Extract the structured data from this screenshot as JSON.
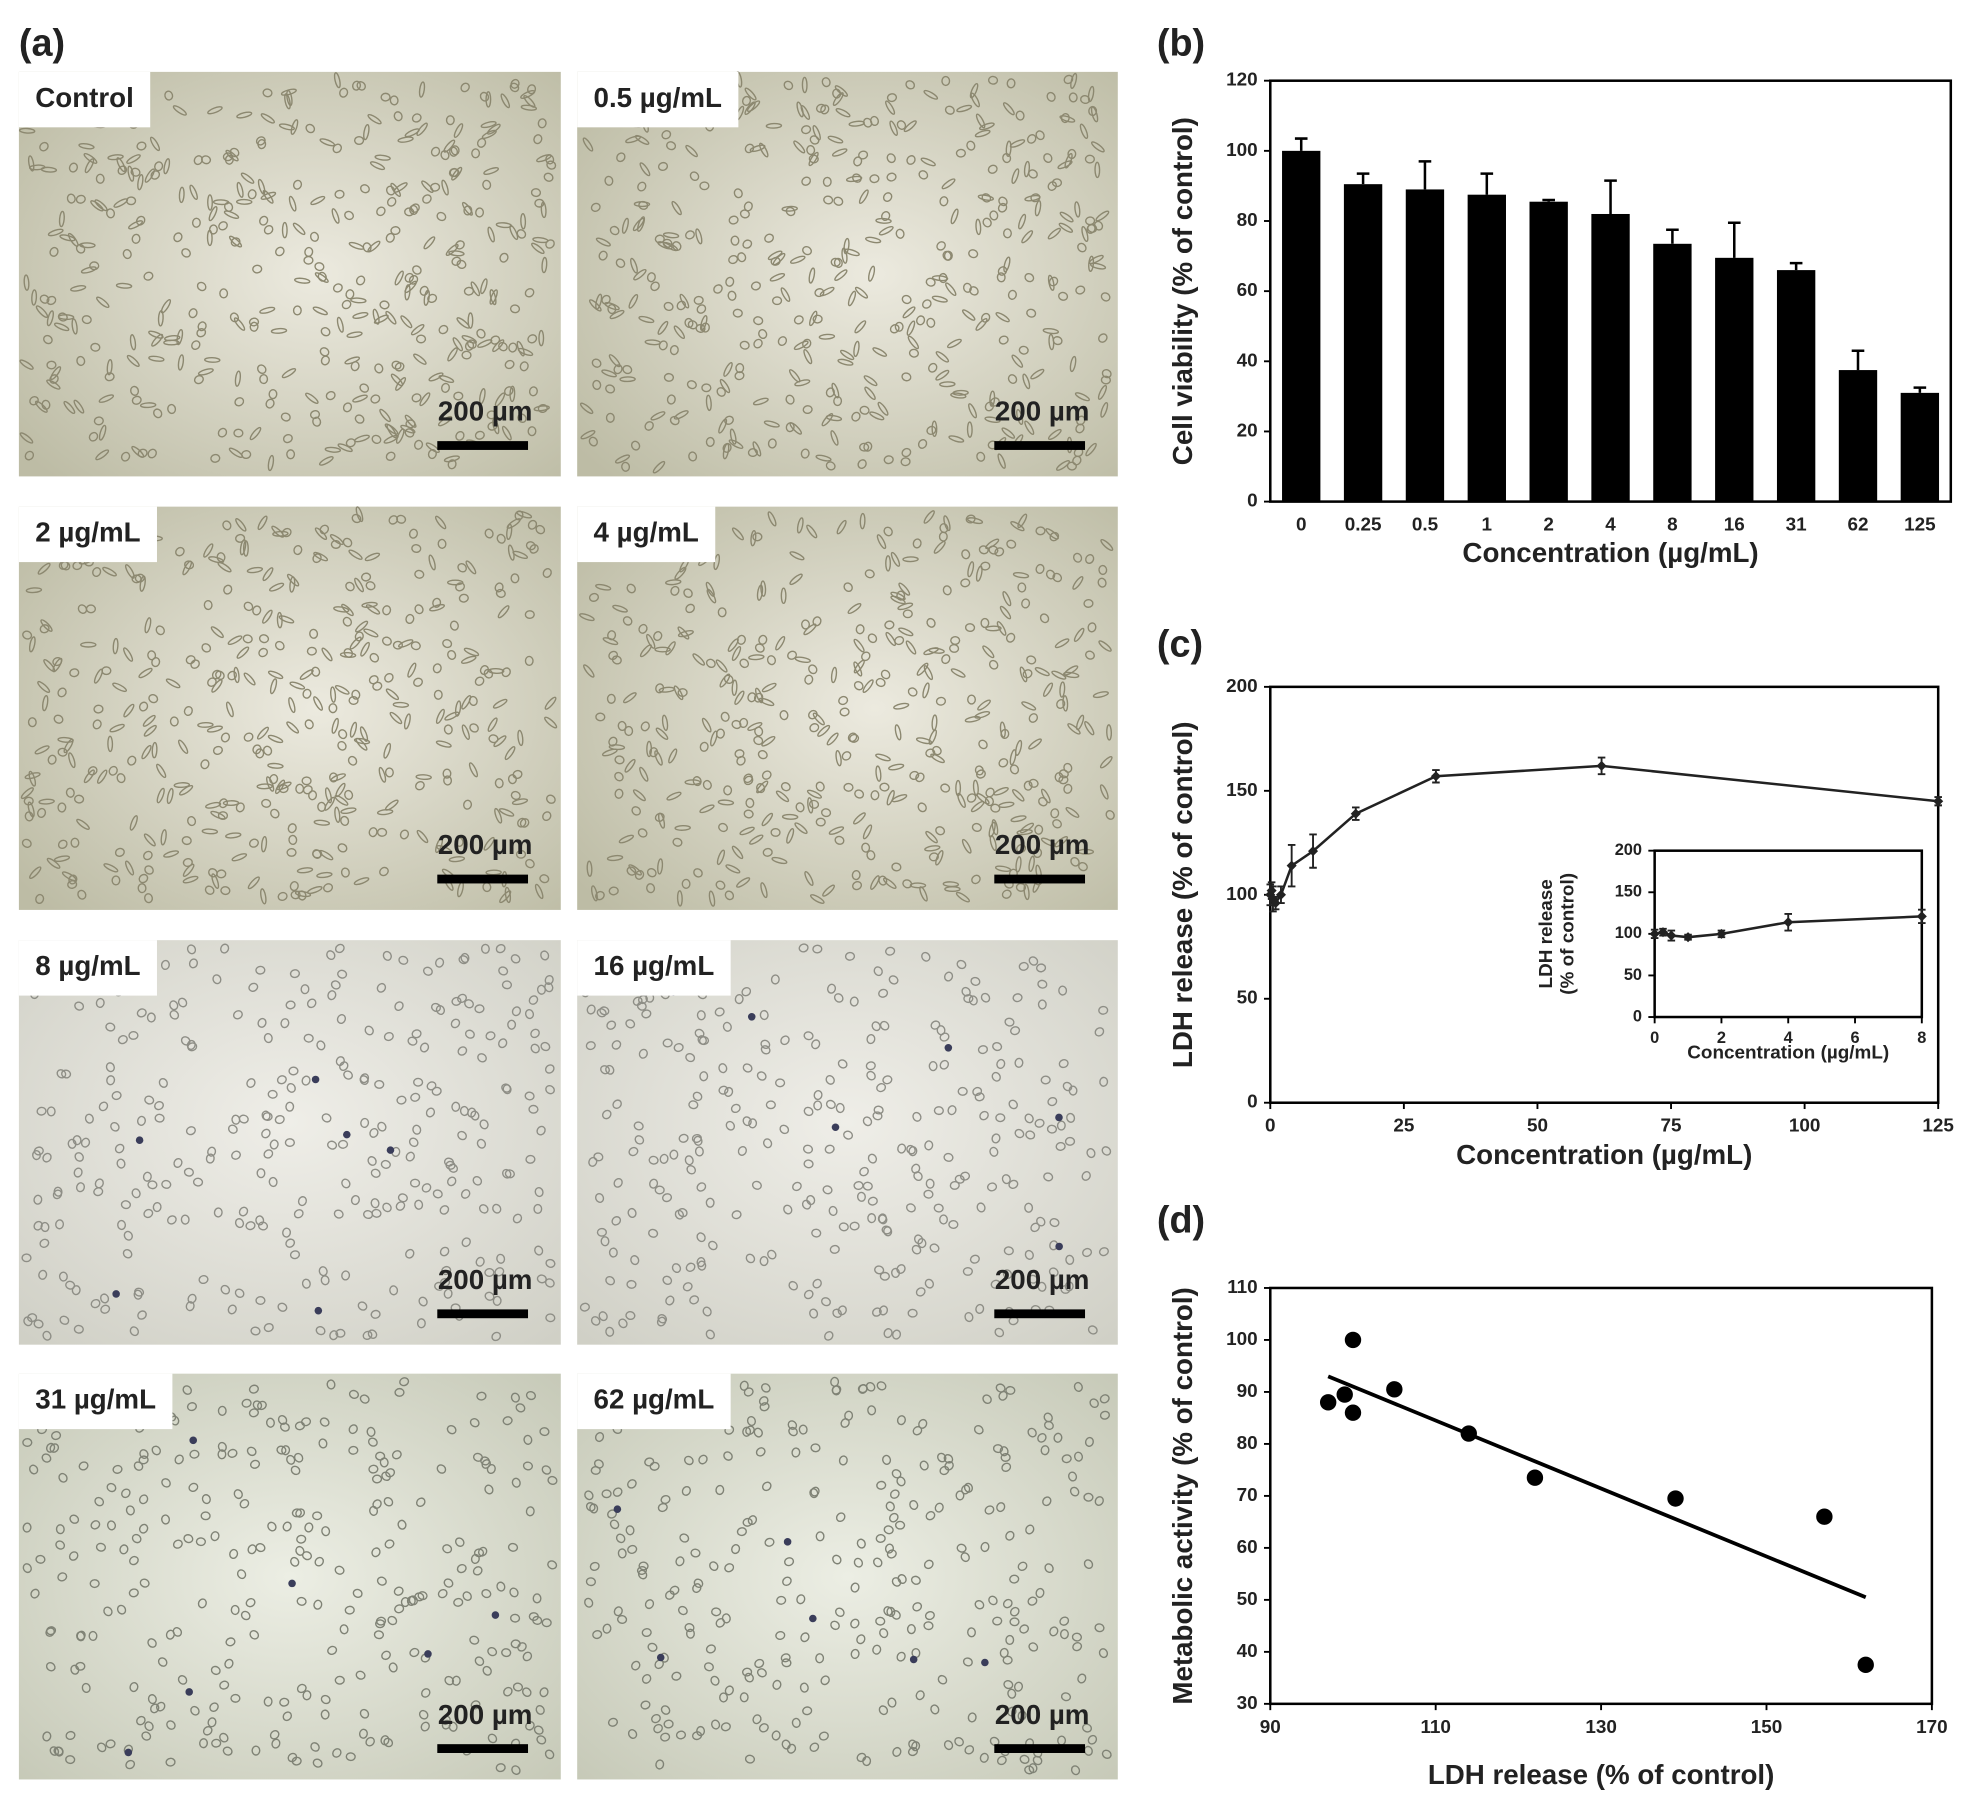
{
  "panel_labels": [
    "(a)",
    "(b)",
    "(c)",
    "(d)"
  ],
  "micrographs": [
    {
      "label": "Control",
      "scale_bar": "200 µm"
    },
    {
      "label": "0.5 µg/mL",
      "scale_bar": "200 µm"
    },
    {
      "label": "2 µg/mL",
      "scale_bar": "200 µm"
    },
    {
      "label": "4 µg/mL",
      "scale_bar": "200 µm"
    },
    {
      "label": "8 µg/mL",
      "scale_bar": "200 µm"
    },
    {
      "label": "16 µg/mL",
      "scale_bar": "200 µm"
    },
    {
      "label": "31 µg/mL",
      "scale_bar": "200 µm"
    },
    {
      "label": "62 µg/mL",
      "scale_bar": "200 µm"
    }
  ],
  "chart_data": [
    {
      "type": "bar",
      "xlabel": "Concentration (µg/mL)",
      "ylabel": "Cell viability (% of control)",
      "categories": [
        "0",
        "0.25",
        "0.5",
        "1",
        "2",
        "4",
        "8",
        "16",
        "31",
        "62",
        "125"
      ],
      "values": [
        100,
        90.5,
        89,
        87.5,
        85.5,
        82,
        73.5,
        69.5,
        66,
        37.5,
        31
      ],
      "errors": [
        3.5,
        3,
        8,
        6,
        0.5,
        9.5,
        4,
        10,
        2,
        5.5,
        1.5
      ],
      "color": "#000000",
      "ylim": [
        0,
        120
      ],
      "yticks": [
        0,
        20,
        40,
        60,
        80,
        100,
        120
      ]
    },
    {
      "type": "line",
      "xlabel": "Concentration (µg/mL)",
      "ylabel": "LDH release (% of control)",
      "x": [
        0,
        0.25,
        0.5,
        1,
        2,
        4,
        8,
        16,
        31,
        62,
        125
      ],
      "values": [
        100,
        102,
        98,
        96,
        100,
        114,
        121,
        139,
        157,
        162,
        145
      ],
      "errors": [
        5,
        4,
        6,
        3,
        4,
        10,
        8,
        3,
        3,
        4,
        2
      ],
      "color": "#222222",
      "xlim": [
        0,
        125
      ],
      "xticks": [
        0,
        25,
        50,
        75,
        100,
        125
      ],
      "ylim": [
        0,
        200
      ],
      "yticks": [
        0,
        50,
        100,
        150,
        200
      ]
    },
    {
      "type": "line",
      "xlabel": "Concentration (µg/mL)",
      "ylabel": [
        "LDH release",
        "(% of control)"
      ],
      "x": [
        0,
        0.25,
        0.5,
        1,
        2,
        4,
        8
      ],
      "values": [
        100,
        102,
        98,
        96,
        100,
        114,
        121
      ],
      "errors": [
        5,
        4,
        6,
        3,
        4,
        10,
        8
      ],
      "color": "#222222",
      "xlim": [
        0,
        8
      ],
      "xticks": [
        0,
        2,
        4,
        6,
        8
      ],
      "ylim": [
        0,
        200
      ],
      "yticks": [
        0,
        50,
        100,
        150,
        200
      ]
    },
    {
      "type": "scatter",
      "xlabel": "LDH release (% of control)",
      "ylabel": "Metabolic activity (% of control)",
      "x": [
        97,
        99,
        100,
        100,
        105,
        114,
        122,
        139,
        157,
        162
      ],
      "y": [
        88,
        89.5,
        86,
        100,
        90.5,
        82,
        73.5,
        69.5,
        66,
        37.5
      ],
      "trendline": {
        "x": [
          97,
          162
        ],
        "y": [
          93,
          50.5
        ]
      },
      "color": "#000000",
      "xlim": [
        90,
        170
      ],
      "xticks": [
        90,
        110,
        130,
        150,
        170
      ],
      "ylim": [
        30,
        110
      ],
      "yticks": [
        30,
        40,
        50,
        60,
        70,
        80,
        90,
        100,
        110
      ]
    }
  ]
}
